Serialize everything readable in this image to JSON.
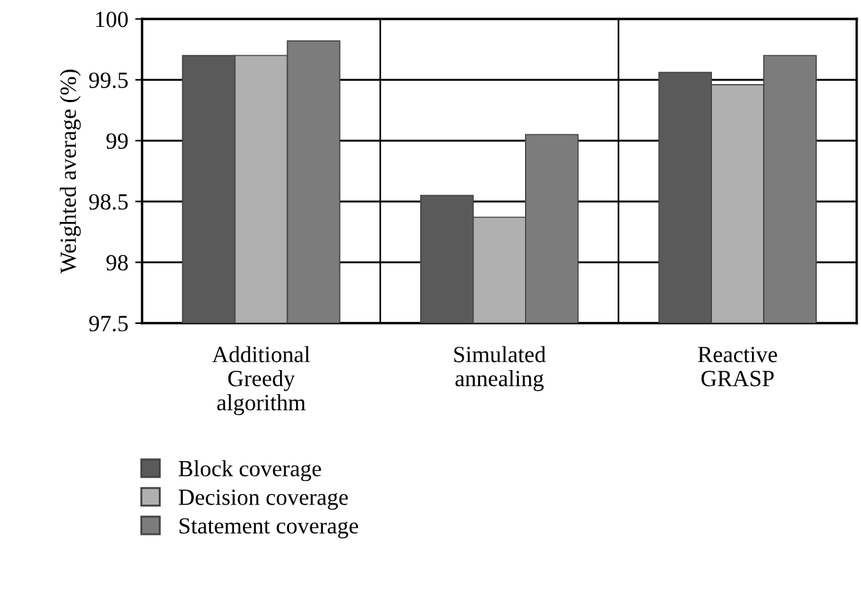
{
  "chart_data": {
    "type": "bar",
    "ylabel": "Weighted average (%)",
    "categories": [
      "Additional\nGreedy\nalgorithm",
      "Simulated\nannealing",
      "Reactive\nGRASP"
    ],
    "series": [
      {
        "name": "Block coverage",
        "color": "#5a5a5a",
        "values": [
          99.7,
          98.55,
          99.56
        ]
      },
      {
        "name": "Decision coverage",
        "color": "#b0b0b0",
        "values": [
          99.7,
          98.37,
          99.46
        ]
      },
      {
        "name": "Statement coverage",
        "color": "#7c7c7c",
        "values": [
          99.82,
          99.05,
          99.7
        ]
      }
    ],
    "ylim": [
      97.5,
      100
    ],
    "yticks": [
      97.5,
      98,
      98.5,
      99,
      99.5,
      100
    ],
    "grid": true,
    "legend": "bottom left"
  }
}
